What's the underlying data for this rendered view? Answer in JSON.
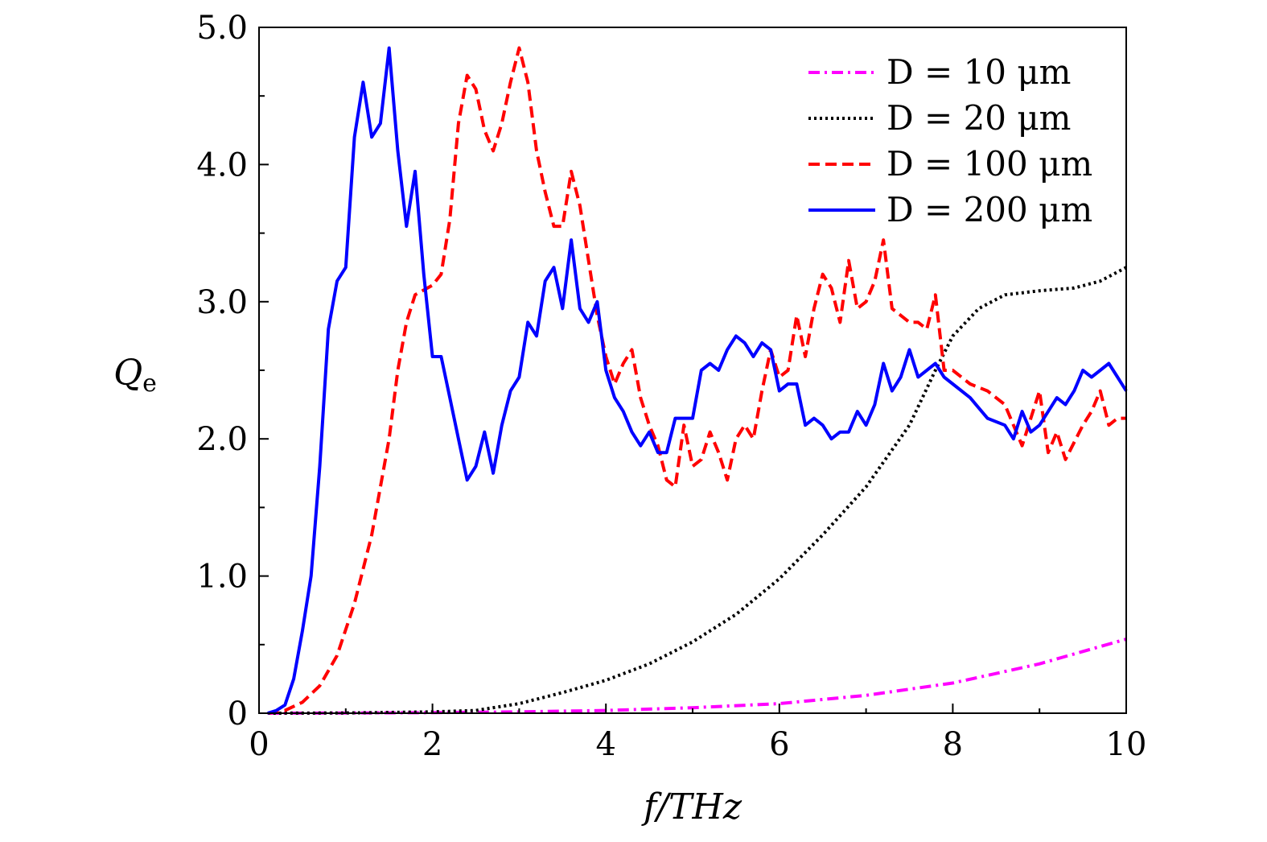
{
  "chart_data": {
    "type": "line",
    "xlabel": "f/THz",
    "ylabel": "Q_e",
    "ylabel_main": "Q",
    "ylabel_sub": "e",
    "xlim": [
      0,
      10
    ],
    "ylim": [
      0,
      5
    ],
    "x_ticks": [
      0,
      2,
      4,
      6,
      8,
      10
    ],
    "x_tick_labels": [
      "0",
      "2",
      "4",
      "6",
      "8",
      "10"
    ],
    "y_ticks": [
      0,
      1,
      2,
      3,
      4,
      5
    ],
    "y_tick_labels": [
      "0",
      "1.0",
      "2.0",
      "3.0",
      "4.0",
      "5.0"
    ],
    "legend_position": "top-right",
    "series": [
      {
        "name": "D = 10 μm",
        "color": "#ff00ff",
        "style": "dashdot",
        "points": [
          [
            0.1,
            0
          ],
          [
            1,
            0.002
          ],
          [
            2,
            0.004
          ],
          [
            3,
            0.01
          ],
          [
            4,
            0.02
          ],
          [
            5,
            0.04
          ],
          [
            6,
            0.07
          ],
          [
            7,
            0.13
          ],
          [
            8,
            0.22
          ],
          [
            9,
            0.36
          ],
          [
            9.5,
            0.45
          ],
          [
            10,
            0.54
          ]
        ]
      },
      {
        "name": "D = 20 μm",
        "color": "#000000",
        "style": "dotted",
        "points": [
          [
            0.1,
            0
          ],
          [
            1,
            0.002
          ],
          [
            2,
            0.01
          ],
          [
            2.5,
            0.02
          ],
          [
            3,
            0.07
          ],
          [
            3.5,
            0.15
          ],
          [
            4,
            0.24
          ],
          [
            4.5,
            0.36
          ],
          [
            5,
            0.52
          ],
          [
            5.5,
            0.72
          ],
          [
            6,
            0.98
          ],
          [
            6.5,
            1.3
          ],
          [
            7,
            1.65
          ],
          [
            7.5,
            2.1
          ],
          [
            7.8,
            2.5
          ],
          [
            8,
            2.75
          ],
          [
            8.3,
            2.95
          ],
          [
            8.6,
            3.05
          ],
          [
            9,
            3.08
          ],
          [
            9.4,
            3.1
          ],
          [
            9.7,
            3.15
          ],
          [
            10,
            3.25
          ]
        ]
      },
      {
        "name": "D = 100 μm",
        "color": "#ff0000",
        "style": "dashed",
        "points": [
          [
            0.1,
            0
          ],
          [
            0.3,
            0.02
          ],
          [
            0.5,
            0.08
          ],
          [
            0.7,
            0.2
          ],
          [
            0.9,
            0.42
          ],
          [
            1.1,
            0.8
          ],
          [
            1.3,
            1.3
          ],
          [
            1.5,
            2.0
          ],
          [
            1.6,
            2.5
          ],
          [
            1.7,
            2.85
          ],
          [
            1.8,
            3.05
          ],
          [
            2,
            3.12
          ],
          [
            2.1,
            3.2
          ],
          [
            2.2,
            3.6
          ],
          [
            2.3,
            4.3
          ],
          [
            2.4,
            4.65
          ],
          [
            2.5,
            4.55
          ],
          [
            2.6,
            4.25
          ],
          [
            2.7,
            4.1
          ],
          [
            2.8,
            4.3
          ],
          [
            2.9,
            4.6
          ],
          [
            3,
            4.85
          ],
          [
            3.1,
            4.6
          ],
          [
            3.2,
            4.1
          ],
          [
            3.3,
            3.8
          ],
          [
            3.4,
            3.55
          ],
          [
            3.5,
            3.55
          ],
          [
            3.6,
            3.95
          ],
          [
            3.7,
            3.7
          ],
          [
            3.8,
            3.3
          ],
          [
            3.9,
            2.9
          ],
          [
            4,
            2.6
          ],
          [
            4.1,
            2.4
          ],
          [
            4.2,
            2.55
          ],
          [
            4.3,
            2.65
          ],
          [
            4.4,
            2.3
          ],
          [
            4.5,
            2.1
          ],
          [
            4.6,
            1.95
          ],
          [
            4.7,
            1.7
          ],
          [
            4.8,
            1.65
          ],
          [
            4.9,
            2.1
          ],
          [
            5,
            1.8
          ],
          [
            5.1,
            1.85
          ],
          [
            5.2,
            2.05
          ],
          [
            5.3,
            1.9
          ],
          [
            5.4,
            1.7
          ],
          [
            5.5,
            2.0
          ],
          [
            5.6,
            2.1
          ],
          [
            5.7,
            2.0
          ],
          [
            5.8,
            2.35
          ],
          [
            5.9,
            2.65
          ],
          [
            6,
            2.45
          ],
          [
            6.1,
            2.5
          ],
          [
            6.2,
            2.9
          ],
          [
            6.3,
            2.6
          ],
          [
            6.4,
            2.95
          ],
          [
            6.5,
            3.2
          ],
          [
            6.6,
            3.1
          ],
          [
            6.7,
            2.85
          ],
          [
            6.8,
            3.3
          ],
          [
            6.9,
            2.95
          ],
          [
            7,
            3.0
          ],
          [
            7.1,
            3.15
          ],
          [
            7.2,
            3.45
          ],
          [
            7.3,
            2.95
          ],
          [
            7.4,
            2.9
          ],
          [
            7.5,
            2.85
          ],
          [
            7.6,
            2.85
          ],
          [
            7.7,
            2.8
          ],
          [
            7.8,
            3.05
          ],
          [
            7.9,
            2.5
          ],
          [
            8,
            2.5
          ],
          [
            8.2,
            2.4
          ],
          [
            8.4,
            2.35
          ],
          [
            8.6,
            2.25
          ],
          [
            8.8,
            1.95
          ],
          [
            9,
            2.35
          ],
          [
            9.1,
            1.9
          ],
          [
            9.2,
            2.05
          ],
          [
            9.3,
            1.85
          ],
          [
            9.5,
            2.1
          ],
          [
            9.6,
            2.2
          ],
          [
            9.7,
            2.35
          ],
          [
            9.8,
            2.1
          ],
          [
            9.9,
            2.15
          ],
          [
            10,
            2.15
          ]
        ]
      },
      {
        "name": "D = 200 μm",
        "color": "#0000ff",
        "style": "solid",
        "points": [
          [
            0.1,
            0
          ],
          [
            0.2,
            0.02
          ],
          [
            0.3,
            0.06
          ],
          [
            0.4,
            0.25
          ],
          [
            0.5,
            0.6
          ],
          [
            0.6,
            1.0
          ],
          [
            0.7,
            1.8
          ],
          [
            0.8,
            2.8
          ],
          [
            0.9,
            3.15
          ],
          [
            1,
            3.25
          ],
          [
            1.1,
            4.2
          ],
          [
            1.2,
            4.6
          ],
          [
            1.3,
            4.2
          ],
          [
            1.4,
            4.3
          ],
          [
            1.5,
            4.85
          ],
          [
            1.6,
            4.1
          ],
          [
            1.7,
            3.55
          ],
          [
            1.8,
            3.95
          ],
          [
            1.9,
            3.2
          ],
          [
            2,
            2.6
          ],
          [
            2.1,
            2.6
          ],
          [
            2.2,
            2.3
          ],
          [
            2.3,
            2.0
          ],
          [
            2.4,
            1.7
          ],
          [
            2.5,
            1.8
          ],
          [
            2.6,
            2.05
          ],
          [
            2.7,
            1.75
          ],
          [
            2.8,
            2.1
          ],
          [
            2.9,
            2.35
          ],
          [
            3,
            2.45
          ],
          [
            3.1,
            2.85
          ],
          [
            3.2,
            2.75
          ],
          [
            3.3,
            3.15
          ],
          [
            3.4,
            3.25
          ],
          [
            3.5,
            2.95
          ],
          [
            3.6,
            3.45
          ],
          [
            3.7,
            2.95
          ],
          [
            3.8,
            2.85
          ],
          [
            3.9,
            3.0
          ],
          [
            4,
            2.5
          ],
          [
            4.1,
            2.3
          ],
          [
            4.2,
            2.2
          ],
          [
            4.3,
            2.05
          ],
          [
            4.4,
            1.95
          ],
          [
            4.5,
            2.05
          ],
          [
            4.6,
            1.9
          ],
          [
            4.7,
            1.9
          ],
          [
            4.8,
            2.15
          ],
          [
            4.9,
            2.15
          ],
          [
            5,
            2.15
          ],
          [
            5.1,
            2.5
          ],
          [
            5.2,
            2.55
          ],
          [
            5.3,
            2.5
          ],
          [
            5.4,
            2.65
          ],
          [
            5.5,
            2.75
          ],
          [
            5.6,
            2.7
          ],
          [
            5.7,
            2.6
          ],
          [
            5.8,
            2.7
          ],
          [
            5.9,
            2.65
          ],
          [
            6,
            2.35
          ],
          [
            6.1,
            2.4
          ],
          [
            6.2,
            2.4
          ],
          [
            6.3,
            2.1
          ],
          [
            6.4,
            2.15
          ],
          [
            6.5,
            2.1
          ],
          [
            6.6,
            2.0
          ],
          [
            6.7,
            2.05
          ],
          [
            6.8,
            2.05
          ],
          [
            6.9,
            2.2
          ],
          [
            7,
            2.1
          ],
          [
            7.1,
            2.25
          ],
          [
            7.2,
            2.55
          ],
          [
            7.3,
            2.35
          ],
          [
            7.4,
            2.45
          ],
          [
            7.5,
            2.65
          ],
          [
            7.6,
            2.45
          ],
          [
            7.7,
            2.5
          ],
          [
            7.8,
            2.55
          ],
          [
            7.9,
            2.45
          ],
          [
            8,
            2.4
          ],
          [
            8.2,
            2.3
          ],
          [
            8.4,
            2.15
          ],
          [
            8.6,
            2.1
          ],
          [
            8.7,
            2.0
          ],
          [
            8.8,
            2.2
          ],
          [
            8.9,
            2.05
          ],
          [
            9,
            2.1
          ],
          [
            9.2,
            2.3
          ],
          [
            9.3,
            2.25
          ],
          [
            9.4,
            2.35
          ],
          [
            9.5,
            2.5
          ],
          [
            9.6,
            2.45
          ],
          [
            9.7,
            2.5
          ],
          [
            9.8,
            2.55
          ],
          [
            9.9,
            2.45
          ],
          [
            10,
            2.35
          ]
        ]
      }
    ]
  }
}
